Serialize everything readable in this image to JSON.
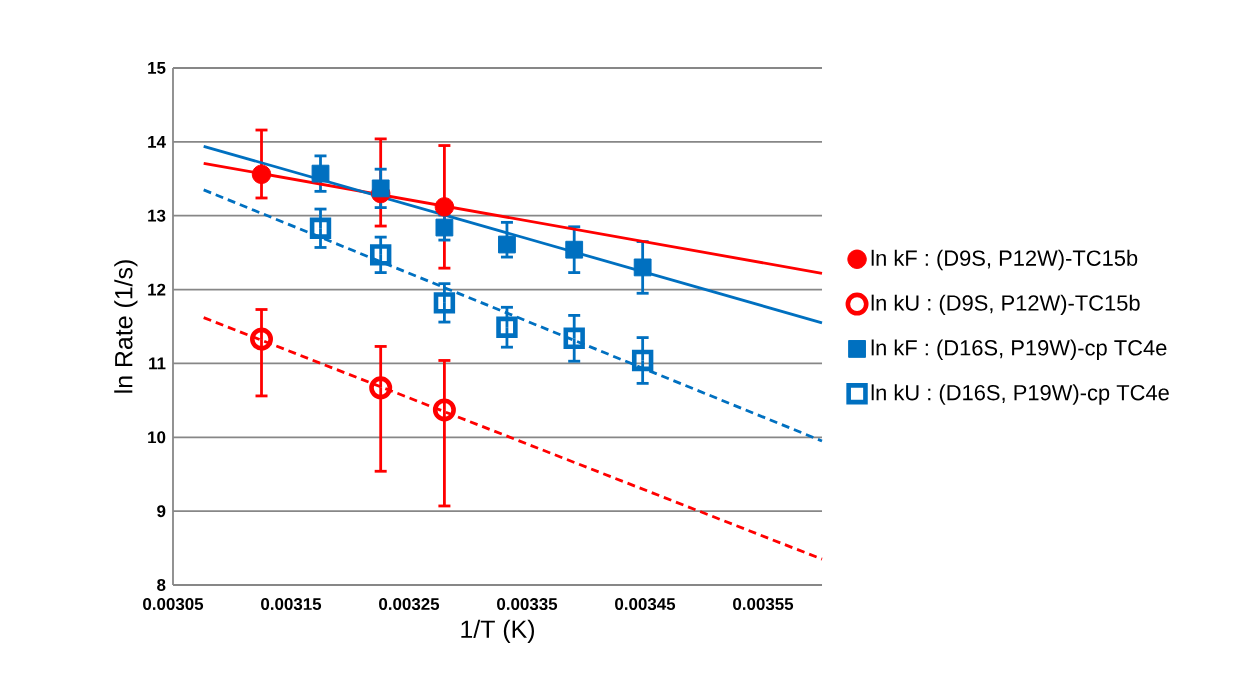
{
  "chart_data": {
    "type": "scatter",
    "xlabel": "1/T (K)",
    "ylabel": "ln Rate (1/s)",
    "xlim": [
      0.00305,
      0.0036
    ],
    "ylim": [
      8,
      15
    ],
    "xticks": [
      0.00305,
      0.00315,
      0.00325,
      0.00335,
      0.00345,
      0.00355
    ],
    "yticks": [
      8,
      9,
      10,
      11,
      12,
      13,
      14,
      15
    ],
    "grid": "y",
    "legend": "right",
    "series": [
      {
        "name": "ln kF : (D9S, P12W)-TC15b",
        "marker": "circle",
        "color": "#ff0000",
        "x": [
          0.003125,
          0.003226,
          0.00328
        ],
        "values": [
          13.56,
          13.3,
          13.12
        ],
        "errors": [
          [
            13.24,
            14.16
          ],
          [
            12.86,
            14.04
          ],
          0.83
        ]
      },
      {
        "name": "ln kU : (D9S, P12W)-TC15b",
        "marker": "circle",
        "color": "#ff0000",
        "x": [
          0.003125,
          0.003226,
          0.00328
        ],
        "values": [
          11.33,
          10.67,
          10.37
        ],
        "errors": [
          [
            10.56,
            11.73
          ],
          [
            9.54,
            11.23
          ],
          [
            9.07,
            11.04
          ]
        ]
      },
      {
        "name": "ln kF : (D16S, P19W)-cp TC4e",
        "marker": "square",
        "color": "#0070c0",
        "x": [
          0.003175,
          0.003226,
          0.00328,
          0.003333,
          0.00339,
          0.003448
        ],
        "values": [
          13.57,
          13.37,
          12.84,
          12.61,
          12.54,
          12.3
        ],
        "errors": [
          0.24,
          0.26,
          0.17,
          [
            12.44,
            12.91
          ],
          0.31,
          0.35
        ]
      },
      {
        "name": "ln kU : (D16S, P19W)-cp TC4e",
        "marker": "square",
        "color": "#0070c0",
        "x": [
          0.003175,
          0.003226,
          0.00328,
          0.003333,
          0.00339,
          0.003448
        ],
        "values": [
          12.83,
          12.47,
          11.82,
          11.49,
          11.34,
          11.04
        ],
        "errors": [
          0.26,
          0.24,
          0.26,
          0.27,
          0.31,
          0.31
        ]
      },
      {
        "type": "line",
        "marker": "none",
        "line_style": "solid",
        "color": "#ff0000",
        "x": [
          0.003076,
          0.0036
        ],
        "values": [
          13.71,
          12.22
        ]
      },
      {
        "type": "line",
        "marker": "none",
        "line_style": "dashed",
        "color": "#ff0000",
        "x": [
          0.003076,
          0.0036
        ],
        "values": [
          11.62,
          8.35
        ]
      },
      {
        "type": "line",
        "marker": "none",
        "line_style": "solid",
        "color": "#0070c0",
        "x": [
          0.003076,
          0.0036
        ],
        "values": [
          13.94,
          11.55
        ]
      },
      {
        "type": "line",
        "marker": "none",
        "line_style": "dashed",
        "color": "#0070c0",
        "x": [
          0.003076,
          0.0036
        ],
        "values": [
          13.35,
          9.95
        ]
      }
    ]
  }
}
